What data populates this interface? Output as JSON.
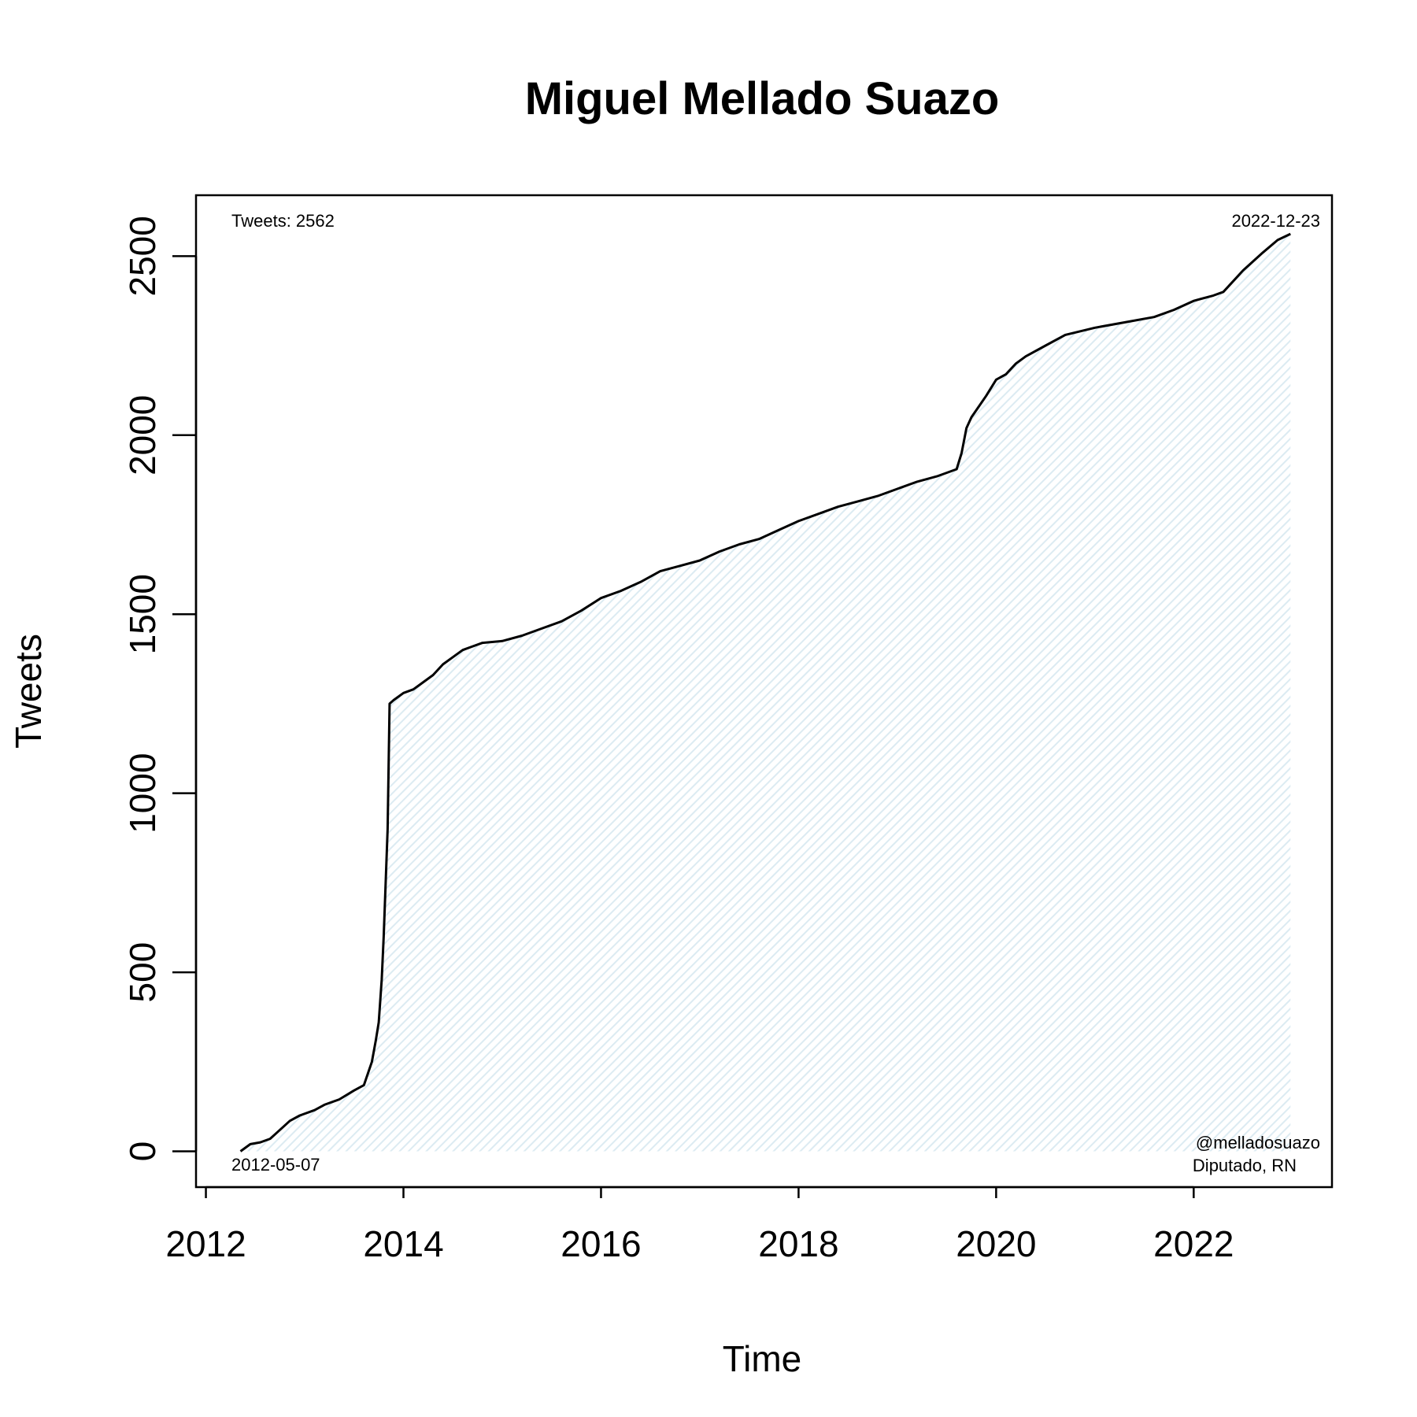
{
  "chart_data": {
    "type": "area",
    "title": "Miguel Mellado Suazo",
    "xlabel": "Time",
    "ylabel": "Tweets",
    "xlim": [
      2011.9,
      2023.4
    ],
    "ylim": [
      -100,
      2670
    ],
    "x_ticks": [
      2012,
      2014,
      2016,
      2018,
      2020,
      2022
    ],
    "x_tick_labels": [
      "2012",
      "2014",
      "2016",
      "2018",
      "2020",
      "2022"
    ],
    "y_ticks": [
      0,
      500,
      1000,
      1500,
      2000,
      2500
    ],
    "y_tick_labels": [
      "0",
      "500",
      "1000",
      "1500",
      "2000",
      "2500"
    ],
    "grid": false,
    "fill_color": "#e8f4f8",
    "line_color": "#000000",
    "annotations": {
      "tweets_count": "Tweets: 2562",
      "start_date": "2012-05-07",
      "end_date": "2022-12-23",
      "handle": "@melladosuazo",
      "role": "Diputado, RN"
    },
    "series": [
      {
        "x": [
          2012.35,
          2012.45,
          2012.55,
          2012.65,
          2012.75,
          2012.85,
          2012.95,
          2013.1,
          2013.2,
          2013.35,
          2013.5,
          2013.6,
          2013.68,
          2013.72,
          2013.75,
          2013.78,
          2013.8,
          2013.82,
          2013.84,
          2013.86,
          2013.9,
          2014.0,
          2014.1,
          2014.2,
          2014.3,
          2014.4,
          2014.5,
          2014.6,
          2014.7,
          2014.8,
          2015.0,
          2015.2,
          2015.4,
          2015.6,
          2015.8,
          2016.0,
          2016.2,
          2016.4,
          2016.6,
          2016.8,
          2017.0,
          2017.2,
          2017.4,
          2017.6,
          2017.8,
          2018.0,
          2018.2,
          2018.4,
          2018.6,
          2018.8,
          2019.0,
          2019.2,
          2019.4,
          2019.6,
          2019.65,
          2019.7,
          2019.75,
          2019.8,
          2019.9,
          2020.0,
          2020.1,
          2020.2,
          2020.3,
          2020.5,
          2020.7,
          2021.0,
          2021.3,
          2021.6,
          2021.8,
          2022.0,
          2022.2,
          2022.3,
          2022.5,
          2022.7,
          2022.85,
          2022.98
        ],
        "y": [
          0,
          20,
          25,
          35,
          60,
          85,
          100,
          115,
          130,
          145,
          170,
          185,
          250,
          310,
          360,
          480,
          600,
          750,
          900,
          1250,
          1260,
          1280,
          1290,
          1310,
          1330,
          1360,
          1380,
          1400,
          1410,
          1420,
          1425,
          1440,
          1460,
          1480,
          1510,
          1545,
          1565,
          1590,
          1620,
          1635,
          1650,
          1675,
          1695,
          1710,
          1735,
          1760,
          1780,
          1800,
          1815,
          1830,
          1850,
          1870,
          1885,
          1905,
          1950,
          2020,
          2050,
          2070,
          2110,
          2155,
          2170,
          2200,
          2220,
          2250,
          2280,
          2300,
          2315,
          2330,
          2350,
          2375,
          2390,
          2400,
          2460,
          2510,
          2545,
          2562
        ]
      }
    ]
  }
}
